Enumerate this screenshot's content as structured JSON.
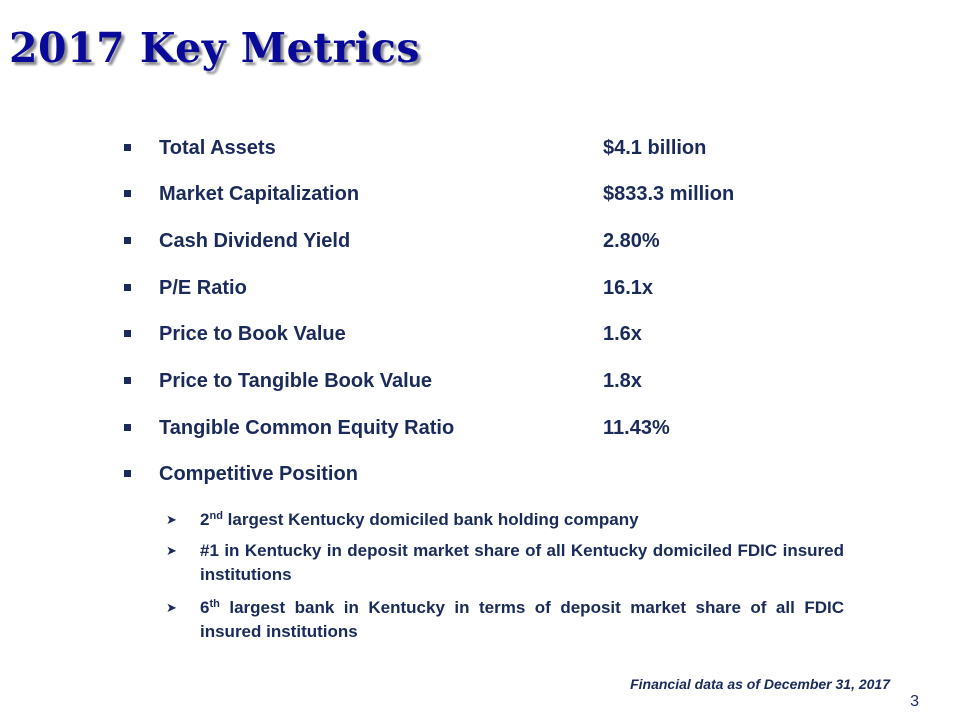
{
  "title": "2017 Key Metrics",
  "metrics": [
    {
      "label": "Total Assets",
      "value": "$4.1 billion"
    },
    {
      "label": "Market Capitalization",
      "value": "$833.3 million"
    },
    {
      "label": "Cash Dividend Yield",
      "value": "2.80%"
    },
    {
      "label": "P/E Ratio",
      "value": "16.1x"
    },
    {
      "label": "Price to Book Value",
      "value": "1.6x"
    },
    {
      "label": "Price to Tangible Book Value",
      "value": "1.8x"
    },
    {
      "label": "Tangible Common Equity Ratio",
      "value": "11.43%"
    },
    {
      "label": "Competitive Position",
      "value": ""
    }
  ],
  "competitive": [
    {
      "sup_num": "2",
      "sup": "nd",
      "text": " largest Kentucky domiciled bank holding company"
    },
    {
      "text": "#1 in Kentucky in deposit market share of all Kentucky domiciled FDIC insured institutions"
    },
    {
      "sup_num": "6",
      "sup": "th",
      "text": " largest bank in Kentucky in terms of deposit market share of all FDIC insured institutions"
    }
  ],
  "footnote": "Financial data as of December 31, 2017",
  "page_number": "3",
  "colors": {
    "title": "#0a0a9a",
    "text": "#1a2a5a"
  },
  "icons": {
    "metric_bullet": "square-bullet-icon",
    "sub_bullet": "arrow-bullet-icon"
  }
}
